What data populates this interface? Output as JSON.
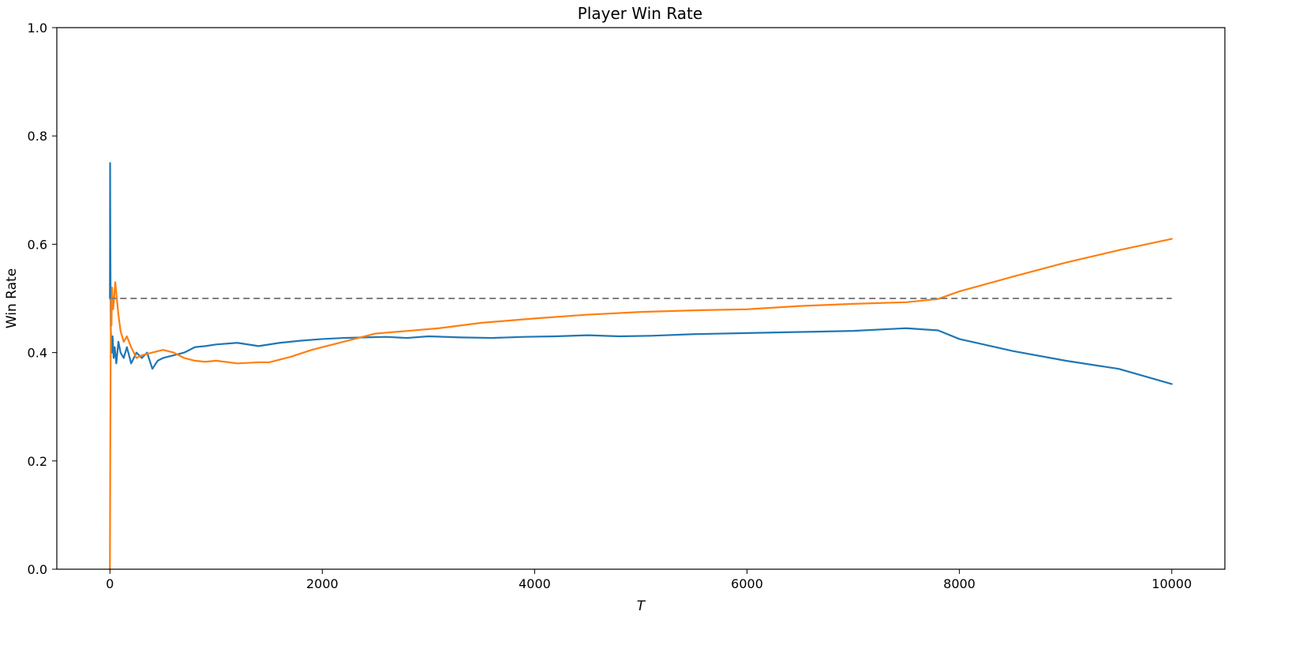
{
  "chart_data": {
    "type": "line",
    "title": "Player Win Rate",
    "xlabel": "T",
    "ylabel": "Win Rate",
    "xlim": [
      -500,
      10500
    ],
    "ylim": [
      0.0,
      1.0
    ],
    "xticks": [
      0,
      2000,
      4000,
      6000,
      8000,
      10000
    ],
    "xtick_labels": [
      "0",
      "2000",
      "4000",
      "6000",
      "8000",
      "10000"
    ],
    "yticks": [
      0.0,
      0.2,
      0.4,
      0.6,
      0.8,
      1.0
    ],
    "ytick_labels": [
      "0.0",
      "0.2",
      "0.4",
      "0.6",
      "0.8",
      "1.0"
    ],
    "grid": false,
    "reference_line": {
      "y": 0.5,
      "x_range": [
        0,
        10000
      ],
      "color": "#808080",
      "style": "dashed"
    },
    "series": [
      {
        "color": "#1f77b4",
        "x": [
          0,
          2,
          4,
          6,
          8,
          12,
          18,
          25,
          35,
          45,
          60,
          80,
          100,
          130,
          160,
          200,
          250,
          300,
          350,
          400,
          450,
          500,
          600,
          700,
          800,
          900,
          1000,
          1200,
          1400,
          1600,
          1800,
          2000,
          2200,
          2400,
          2600,
          2800,
          3000,
          3300,
          3600,
          3900,
          4200,
          4500,
          4800,
          5100,
          5500,
          6000,
          6500,
          7000,
          7500,
          7800,
          8000,
          8500,
          9000,
          9500,
          10000
        ],
        "y": [
          0.5,
          0.75,
          0.6,
          0.52,
          0.45,
          0.42,
          0.4,
          0.43,
          0.39,
          0.41,
          0.38,
          0.42,
          0.4,
          0.39,
          0.41,
          0.38,
          0.4,
          0.39,
          0.4,
          0.37,
          0.385,
          0.39,
          0.395,
          0.4,
          0.41,
          0.412,
          0.415,
          0.418,
          0.412,
          0.418,
          0.422,
          0.425,
          0.427,
          0.428,
          0.429,
          0.427,
          0.43,
          0.428,
          0.427,
          0.429,
          0.43,
          0.432,
          0.43,
          0.431,
          0.434,
          0.436,
          0.438,
          0.44,
          0.445,
          0.441,
          0.425,
          0.403,
          0.385,
          0.37,
          0.342
        ]
      },
      {
        "color": "#ff7f0e",
        "x": [
          0,
          3,
          6,
          10,
          15,
          20,
          30,
          40,
          50,
          60,
          80,
          100,
          130,
          160,
          200,
          250,
          300,
          400,
          500,
          600,
          700,
          800,
          900,
          1000,
          1200,
          1400,
          1500,
          1700,
          1900,
          2100,
          2300,
          2500,
          2800,
          3100,
          3500,
          4000,
          4500,
          5000,
          5500,
          6000,
          6500,
          7000,
          7500,
          7800,
          8000,
          8500,
          9000,
          9500,
          10000
        ],
        "y": [
          0.0,
          0.2,
          0.35,
          0.5,
          0.45,
          0.52,
          0.48,
          0.5,
          0.53,
          0.51,
          0.47,
          0.44,
          0.42,
          0.43,
          0.41,
          0.39,
          0.395,
          0.4,
          0.405,
          0.4,
          0.39,
          0.385,
          0.383,
          0.385,
          0.38,
          0.382,
          0.382,
          0.392,
          0.405,
          0.415,
          0.425,
          0.435,
          0.44,
          0.445,
          0.455,
          0.463,
          0.47,
          0.475,
          0.478,
          0.48,
          0.486,
          0.49,
          0.493,
          0.499,
          0.513,
          0.54,
          0.566,
          0.589,
          0.61
        ]
      }
    ]
  }
}
